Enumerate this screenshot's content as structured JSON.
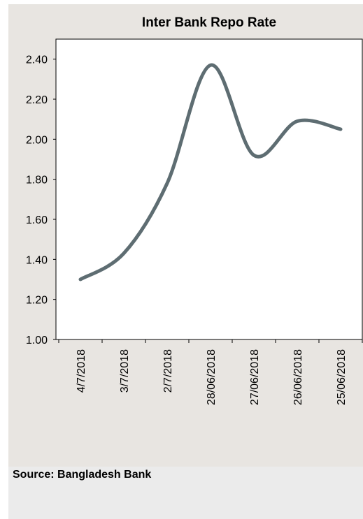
{
  "chart_data": {
    "type": "line",
    "title": "Inter Bank Repo Rate",
    "xlabel": "",
    "ylabel": "",
    "categories": [
      "4/7/2018",
      "3/7/2018",
      "2/7/2018",
      "28/06/2018",
      "27/06/2018",
      "26/06/2018",
      "25/06/2018"
    ],
    "series": [
      {
        "values": [
          1.3,
          1.43,
          1.78,
          2.37,
          1.92,
          2.09,
          2.05
        ]
      }
    ],
    "yticks": [
      "1.00",
      "1.20",
      "1.40",
      "1.60",
      "1.80",
      "2.00",
      "2.20",
      "2.40"
    ],
    "ylim": [
      1.0,
      2.5
    ],
    "grid": false,
    "legend": "none",
    "line_color": "#5e6d72"
  },
  "footer": {
    "source": "Source: Bangladesh Bank"
  }
}
